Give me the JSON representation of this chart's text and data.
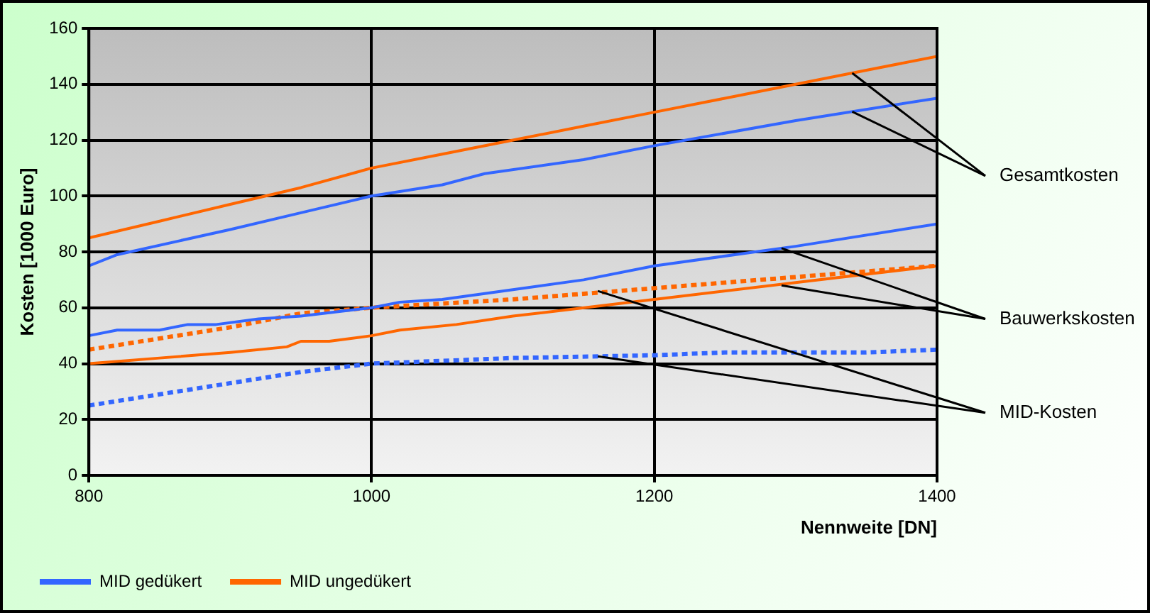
{
  "chart_data": {
    "type": "line",
    "xlabel": "Nennweite [DN]",
    "ylabel": "Kosten [1000 Euro]",
    "xlim": [
      800,
      1400
    ],
    "xticks": [
      800,
      1000,
      1200,
      1400
    ],
    "ylim": [
      0,
      160
    ],
    "yticks": [
      0,
      20,
      40,
      60,
      80,
      100,
      120,
      140,
      160
    ],
    "grid": true,
    "legend": "bottom",
    "marker": "none",
    "series": [
      {
        "name": "MID gedükert",
        "color": "#3366ff",
        "line_style": "solid",
        "x": [
          800,
          820,
          900,
          950,
          1000,
          1050,
          1080,
          1150,
          1200,
          1300,
          1400
        ],
        "values": [
          75,
          79,
          88,
          94,
          100,
          104,
          108,
          113,
          118,
          127,
          135
        ]
      },
      {
        "color": "#3366ff",
        "line_style": "solid",
        "x": [
          800,
          820,
          850,
          870,
          890,
          920,
          950,
          1000,
          1020,
          1050,
          1100,
          1150,
          1200,
          1300,
          1400
        ],
        "values": [
          50,
          52,
          52,
          54,
          54,
          56,
          57,
          60,
          62,
          63,
          66.5,
          70,
          75,
          82,
          90
        ]
      },
      {
        "color": "#3366ff",
        "line_style": "dotted",
        "x": [
          800,
          850,
          900,
          950,
          1000,
          1050,
          1100,
          1200,
          1250,
          1350,
          1400
        ],
        "values": [
          25,
          29,
          33,
          37,
          40,
          41,
          42,
          43,
          44,
          44,
          45
        ]
      },
      {
        "name": "MID ungedükert",
        "color": "#ff6600",
        "line_style": "solid",
        "x": [
          800,
          850,
          900,
          950,
          1000,
          1050,
          1100,
          1150,
          1200,
          1250,
          1300,
          1350,
          1400
        ],
        "values": [
          85,
          91,
          97,
          103,
          110,
          115,
          120,
          125,
          130,
          135,
          140,
          145,
          150
        ]
      },
      {
        "color": "#ff6600",
        "line_style": "solid",
        "x": [
          800,
          850,
          900,
          940,
          950,
          970,
          1000,
          1020,
          1060,
          1100,
          1200,
          1300,
          1400
        ],
        "values": [
          40,
          42,
          44,
          46,
          48,
          48,
          50,
          52,
          54,
          57,
          63,
          69,
          75
        ]
      },
      {
        "color": "#ff6600",
        "line_style": "dotted",
        "x": [
          800,
          850,
          900,
          950,
          1000,
          1100,
          1200,
          1300,
          1400
        ],
        "values": [
          45,
          49,
          53,
          58,
          60,
          63,
          67,
          71,
          75
        ]
      }
    ],
    "annotations": [
      {
        "text": "Gesamtkosten",
        "x": 1340,
        "y": 144
      },
      {
        "text": "Bauwerkskosten",
        "x": 1290,
        "y": 68
      },
      {
        "text": "MID-Kosten",
        "x": 1160,
        "y": 66
      }
    ]
  }
}
